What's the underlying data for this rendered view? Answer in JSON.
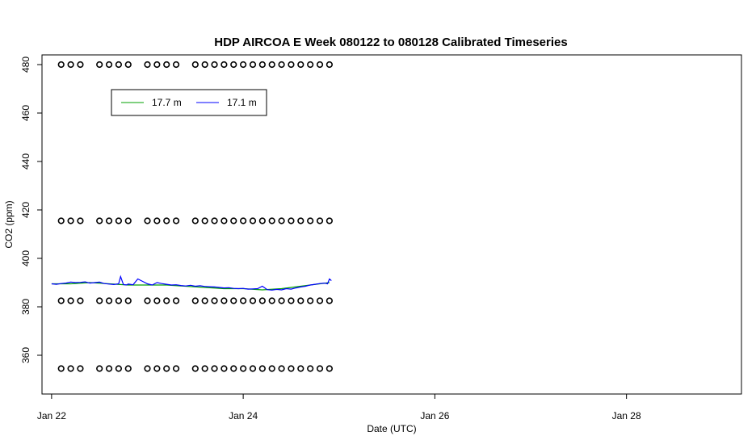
{
  "chart_data": {
    "type": "line",
    "title": "HDP AIRCOA E  Week 080122 to 080128  Calibrated Timeseries",
    "xlabel": "Date (UTC)",
    "ylabel": "CO2 (ppm)",
    "xlim": [
      -0.1,
      7.2
    ],
    "ylim": [
      344,
      484
    ],
    "x_tick_values": [
      0,
      2,
      4,
      6
    ],
    "x_tick_labels": [
      "Jan 22",
      "Jan 24",
      "Jan 26",
      "Jan 28"
    ],
    "y_ticks": [
      360,
      380,
      400,
      420,
      440,
      460,
      480
    ],
    "grid": false,
    "legend_position": "top-left",
    "series": [
      {
        "name": "17.7 m",
        "color": "#00a000",
        "x": [
          0.0,
          0.2,
          0.4,
          0.6,
          0.8,
          0.9,
          1.0,
          1.2,
          1.4,
          1.6,
          1.8,
          2.0,
          2.2,
          2.4,
          2.6,
          2.8,
          2.9
        ],
        "y": [
          389.5,
          389.5,
          390,
          389.5,
          389,
          389,
          389,
          389,
          388.5,
          388,
          387.5,
          387.5,
          387,
          387.5,
          388.5,
          389.5,
          390
        ]
      },
      {
        "name": "17.1 m",
        "color": "#0000ff",
        "x": [
          0.0,
          0.05,
          0.1,
          0.15,
          0.2,
          0.25,
          0.3,
          0.35,
          0.4,
          0.45,
          0.5,
          0.55,
          0.6,
          0.65,
          0.7,
          0.72,
          0.75,
          0.78,
          0.8,
          0.85,
          0.9,
          0.95,
          1.0,
          1.05,
          1.1,
          1.15,
          1.2,
          1.25,
          1.3,
          1.35,
          1.4,
          1.45,
          1.5,
          1.55,
          1.6,
          1.65,
          1.7,
          1.75,
          1.8,
          1.85,
          1.9,
          1.95,
          2.0,
          2.05,
          2.1,
          2.15,
          2.2,
          2.25,
          2.3,
          2.35,
          2.4,
          2.45,
          2.5,
          2.55,
          2.6,
          2.65,
          2.7,
          2.75,
          2.8,
          2.85,
          2.88,
          2.9,
          2.92
        ],
        "y": [
          389.5,
          389.3,
          389.6,
          389.8,
          390.2,
          390.0,
          390.1,
          390.3,
          389.8,
          390.0,
          390.2,
          389.6,
          389.4,
          389.2,
          389.5,
          392.5,
          389.2,
          389.0,
          389.4,
          389.1,
          391.5,
          390.5,
          389.5,
          389.0,
          390.0,
          389.6,
          389.3,
          389.0,
          389.1,
          388.8,
          388.6,
          388.9,
          388.5,
          388.7,
          388.4,
          388.3,
          388.2,
          388.0,
          387.8,
          387.9,
          387.6,
          387.5,
          387.6,
          387.3,
          387.4,
          387.5,
          388.5,
          387.1,
          386.9,
          387.2,
          387.0,
          387.5,
          387.3,
          387.8,
          388.2,
          388.5,
          389.0,
          389.3,
          389.6,
          389.8,
          389.5,
          391.5,
          390.8
        ]
      }
    ],
    "calibration_markers": {
      "x": [
        0.1,
        0.2,
        0.3,
        0.5,
        0.6,
        0.7,
        0.8,
        1.0,
        1.1,
        1.2,
        1.3,
        1.5,
        1.6,
        1.7,
        1.8,
        1.9,
        2.0,
        2.1,
        2.2,
        2.3,
        2.4,
        2.5,
        2.6,
        2.7,
        2.8,
        2.9
      ],
      "levels": [
        354.5,
        382.5,
        415.5,
        480.0
      ]
    }
  }
}
